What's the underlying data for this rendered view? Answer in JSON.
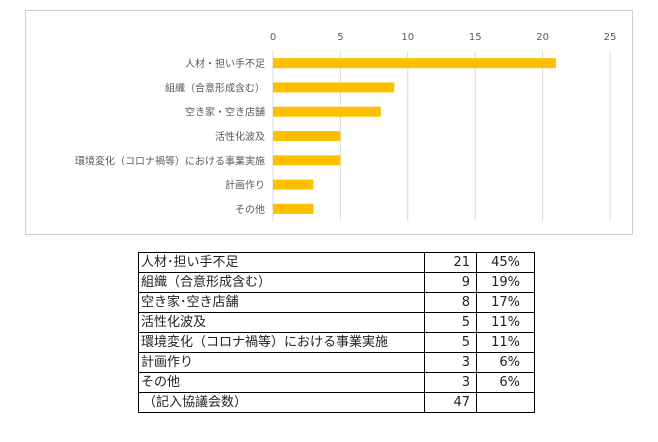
{
  "chart_data": {
    "type": "bar",
    "orientation": "horizontal",
    "categories": [
      "人材・担い手不足",
      "組織（合意形成含む）",
      "空き家・空き店舗",
      "活性化波及",
      "環境変化（コロナ禍等）における事業実施",
      "計画作り",
      "その他"
    ],
    "values": [
      21,
      9,
      8,
      5,
      5,
      3,
      3
    ],
    "xlim": [
      0,
      25
    ],
    "x_ticks": [
      "0",
      "5",
      "10",
      "15",
      "20",
      "25"
    ],
    "grid": true,
    "axis_position": "top",
    "bar_color": "#FFC000"
  },
  "table": {
    "rows": [
      {
        "label": "人材･担い手不足",
        "count": "21",
        "pct": "45%"
      },
      {
        "label": "組織（合意形成含む）",
        "count": "9",
        "pct": "19%"
      },
      {
        "label": "空き家･空き店舗",
        "count": "8",
        "pct": "17%"
      },
      {
        "label": "活性化波及",
        "count": "5",
        "pct": "11%"
      },
      {
        "label": "環境変化（コロナ禍等）における事業実施",
        "count": "5",
        "pct": "11%"
      },
      {
        "label": "計画作り",
        "count": "3",
        "pct": "6%"
      },
      {
        "label": "その他",
        "count": "3",
        "pct": "6%"
      }
    ],
    "total": {
      "label": "（記入協議会数）",
      "count": "47",
      "pct": ""
    }
  }
}
